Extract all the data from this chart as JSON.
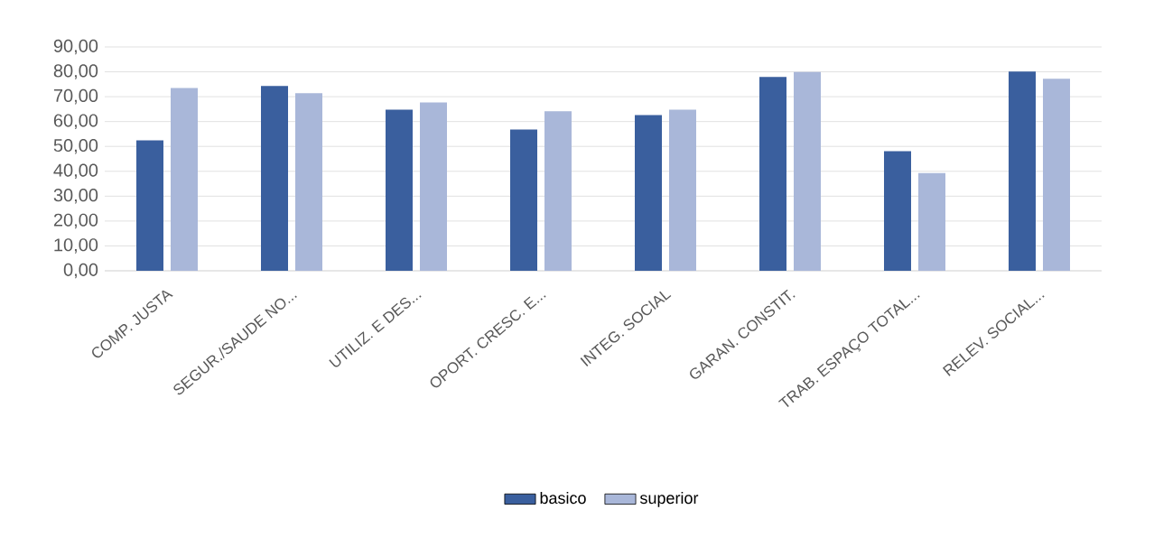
{
  "chart_data": {
    "type": "bar",
    "categories": [
      "COMP. JUSTA",
      "SEGUR./SAUDE NO...",
      "UTILIZ. E DES...",
      "OPORT. CRESC. E...",
      "INTEG. SOCIAL",
      "GARAN. CONSTIT.",
      "TRAB. ESPAÇO TOTAL...",
      "RELEV. SOCIAL..."
    ],
    "series": [
      {
        "name": "basico",
        "color": "#3a5f9e",
        "values": [
          52.4,
          74.3,
          64.8,
          56.8,
          62.6,
          77.9,
          48.1,
          80.1
        ]
      },
      {
        "name": "superior",
        "color": "#a9b7d9",
        "values": [
          73.5,
          71.4,
          67.7,
          64.1,
          64.8,
          79.9,
          39.3,
          77.2
        ]
      }
    ],
    "ylim": [
      0,
      90
    ],
    "yticks": [
      {
        "value": 0,
        "label": "0,00"
      },
      {
        "value": 10,
        "label": "10,00"
      },
      {
        "value": 20,
        "label": "20,00"
      },
      {
        "value": 30,
        "label": "30,00"
      },
      {
        "value": 40,
        "label": "40,00"
      },
      {
        "value": 50,
        "label": "50,00"
      },
      {
        "value": 60,
        "label": "60,00"
      },
      {
        "value": 70,
        "label": "70,00"
      },
      {
        "value": 80,
        "label": "80,00"
      },
      {
        "value": 90,
        "label": "90,00"
      }
    ],
    "grid": "y",
    "legend": "bottom"
  }
}
